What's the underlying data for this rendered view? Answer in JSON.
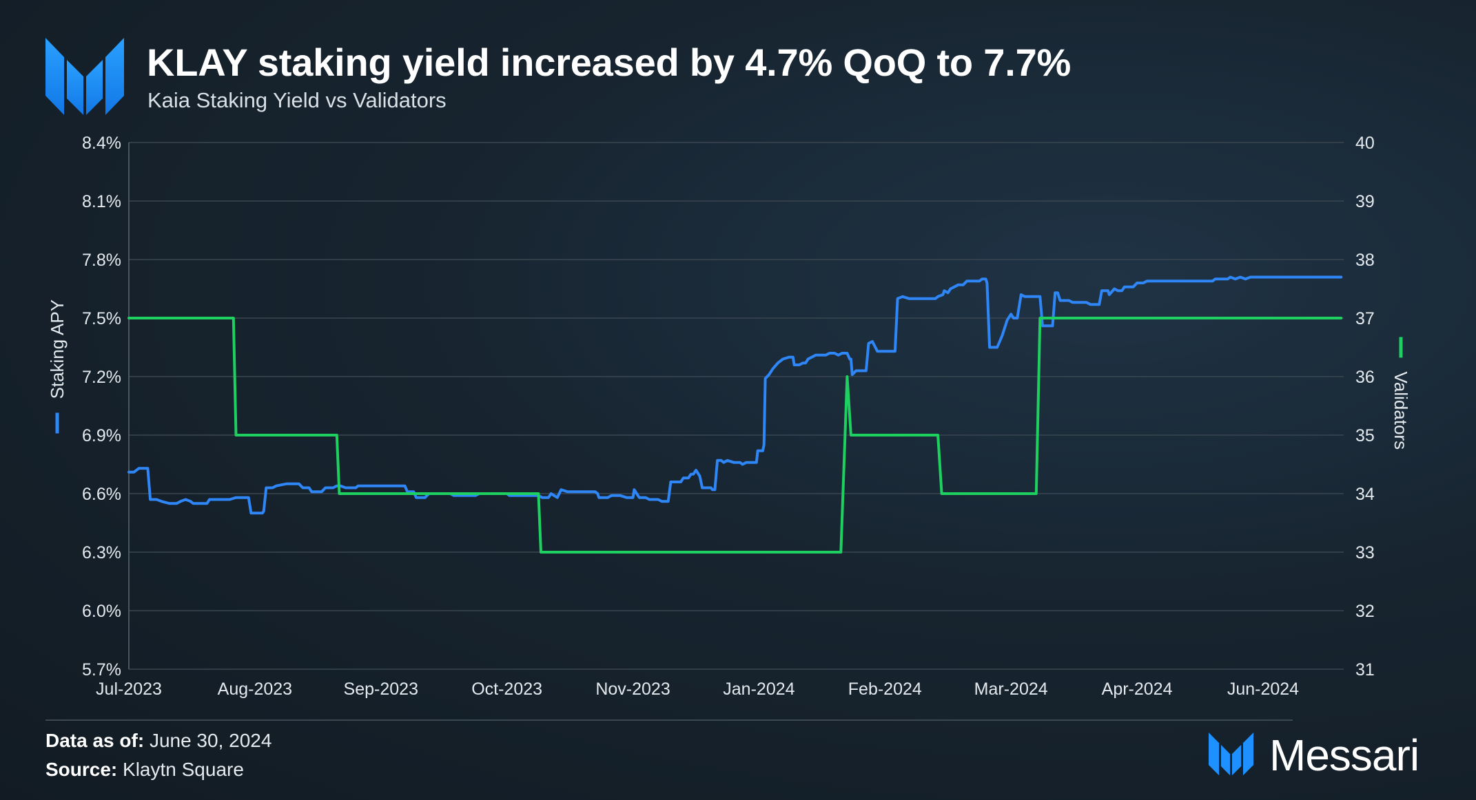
{
  "header": {
    "title": "KLAY staking yield increased by 4.7% QoQ to 7.7%",
    "subtitle": "Kaia Staking Yield vs Validators"
  },
  "footer": {
    "data_as_of_label": "Data as of:",
    "data_as_of_value": "June 30, 2024",
    "source_label": "Source:",
    "source_value": "Klaytn Square",
    "brand": "Messari"
  },
  "colors": {
    "staking_apy": "#2f86f6",
    "validators": "#1ed060",
    "grid": "#3a4650",
    "brand_blue": "#1e90ff"
  },
  "chart_data": {
    "type": "line",
    "x_labels": [
      "Jul-2023",
      "Aug-2023",
      "Sep-2023",
      "Oct-2023",
      "Nov-2023",
      "Jan-2024",
      "Feb-2024",
      "Mar-2024",
      "Apr-2024",
      "Jun-2024"
    ],
    "x_range": [
      0,
      9.64
    ],
    "y_left": {
      "label": "Staking APY",
      "ticks": [
        "5.7%",
        "6.0%",
        "6.3%",
        "6.6%",
        "6.9%",
        "7.2%",
        "7.5%",
        "7.8%",
        "8.1%",
        "8.4%"
      ],
      "range": [
        5.7,
        8.4
      ]
    },
    "y_right": {
      "label": "Validators",
      "ticks": [
        "31",
        "32",
        "33",
        "34",
        "35",
        "36",
        "37",
        "38",
        "39",
        "40"
      ],
      "range": [
        31,
        40
      ]
    },
    "grid": true,
    "series": [
      {
        "name": "Staking APY",
        "axis": "left",
        "points": [
          [
            0.0,
            6.71
          ],
          [
            0.04,
            6.71
          ],
          [
            0.08,
            6.73
          ],
          [
            0.15,
            6.73
          ],
          [
            0.17,
            6.57
          ],
          [
            0.22,
            6.57
          ],
          [
            0.26,
            6.56
          ],
          [
            0.32,
            6.55
          ],
          [
            0.38,
            6.55
          ],
          [
            0.41,
            6.56
          ],
          [
            0.45,
            6.57
          ],
          [
            0.49,
            6.56
          ],
          [
            0.51,
            6.55
          ],
          [
            0.62,
            6.55
          ],
          [
            0.64,
            6.57
          ],
          [
            0.8,
            6.57
          ],
          [
            0.85,
            6.58
          ],
          [
            0.95,
            6.58
          ],
          [
            0.97,
            6.5
          ],
          [
            1.06,
            6.5
          ],
          [
            1.07,
            6.51
          ],
          [
            1.09,
            6.63
          ],
          [
            1.14,
            6.63
          ],
          [
            1.17,
            6.64
          ],
          [
            1.25,
            6.65
          ],
          [
            1.35,
            6.65
          ],
          [
            1.38,
            6.63
          ],
          [
            1.43,
            6.63
          ],
          [
            1.45,
            6.61
          ],
          [
            1.53,
            6.61
          ],
          [
            1.56,
            6.63
          ],
          [
            1.62,
            6.63
          ],
          [
            1.65,
            6.64
          ],
          [
            1.68,
            6.64
          ],
          [
            1.72,
            6.63
          ],
          [
            1.8,
            6.63
          ],
          [
            1.82,
            6.64
          ],
          [
            2.05,
            6.64
          ],
          [
            2.14,
            6.64
          ],
          [
            2.19,
            6.64
          ],
          [
            2.21,
            6.61
          ],
          [
            2.26,
            6.61
          ],
          [
            2.28,
            6.58
          ],
          [
            2.35,
            6.58
          ],
          [
            2.38,
            6.6
          ],
          [
            2.45,
            6.6
          ],
          [
            2.5,
            6.6
          ],
          [
            2.55,
            6.6
          ],
          [
            2.58,
            6.59
          ],
          [
            2.75,
            6.59
          ],
          [
            2.78,
            6.6
          ],
          [
            3.0,
            6.6
          ],
          [
            3.02,
            6.59
          ],
          [
            3.25,
            6.59
          ],
          [
            3.28,
            6.58
          ],
          [
            3.33,
            6.58
          ],
          [
            3.35,
            6.6
          ],
          [
            3.4,
            6.58
          ],
          [
            3.43,
            6.62
          ],
          [
            3.48,
            6.61
          ],
          [
            3.7,
            6.61
          ],
          [
            3.72,
            6.6
          ],
          [
            3.73,
            6.58
          ],
          [
            3.8,
            6.58
          ],
          [
            3.83,
            6.59
          ],
          [
            3.9,
            6.59
          ],
          [
            3.95,
            6.58
          ],
          [
            4.0,
            6.58
          ],
          [
            4.01,
            6.62
          ],
          [
            4.05,
            6.58
          ],
          [
            4.1,
            6.58
          ],
          [
            4.13,
            6.57
          ],
          [
            4.2,
            6.57
          ],
          [
            4.23,
            6.56
          ],
          [
            4.28,
            6.56
          ],
          [
            4.3,
            6.66
          ],
          [
            4.38,
            6.66
          ],
          [
            4.4,
            6.68
          ],
          [
            4.44,
            6.68
          ],
          [
            4.46,
            6.7
          ],
          [
            4.48,
            6.7
          ],
          [
            4.5,
            6.72
          ],
          [
            4.53,
            6.69
          ],
          [
            4.55,
            6.63
          ],
          [
            4.62,
            6.63
          ],
          [
            4.63,
            6.62
          ],
          [
            4.65,
            6.62
          ],
          [
            4.67,
            6.77
          ],
          [
            4.7,
            6.77
          ],
          [
            4.72,
            6.76
          ],
          [
            4.75,
            6.77
          ],
          [
            4.8,
            6.76
          ],
          [
            4.85,
            6.76
          ],
          [
            4.87,
            6.75
          ],
          [
            4.9,
            6.76
          ],
          [
            4.98,
            6.76
          ],
          [
            4.99,
            6.82
          ],
          [
            5.03,
            6.82
          ],
          [
            5.04,
            6.85
          ],
          [
            5.05,
            7.19
          ],
          [
            5.08,
            7.21
          ],
          [
            5.11,
            7.24
          ],
          [
            5.15,
            7.27
          ],
          [
            5.19,
            7.29
          ],
          [
            5.24,
            7.3
          ],
          [
            5.27,
            7.3
          ],
          [
            5.28,
            7.26
          ],
          [
            5.32,
            7.26
          ],
          [
            5.35,
            7.27
          ],
          [
            5.37,
            7.27
          ],
          [
            5.39,
            7.29
          ],
          [
            5.42,
            7.3
          ],
          [
            5.45,
            7.31
          ],
          [
            5.48,
            7.31
          ],
          [
            5.53,
            7.31
          ],
          [
            5.56,
            7.32
          ],
          [
            5.6,
            7.32
          ],
          [
            5.63,
            7.31
          ],
          [
            5.66,
            7.32
          ],
          [
            5.7,
            7.32
          ],
          [
            5.72,
            7.29
          ],
          [
            5.73,
            7.29
          ],
          [
            5.74,
            7.21
          ],
          [
            5.77,
            7.23
          ],
          [
            5.85,
            7.23
          ],
          [
            5.87,
            7.37
          ],
          [
            5.9,
            7.38
          ],
          [
            5.94,
            7.33
          ],
          [
            6.08,
            7.33
          ],
          [
            6.1,
            7.6
          ],
          [
            6.14,
            7.61
          ],
          [
            6.19,
            7.6
          ],
          [
            6.32,
            7.6
          ],
          [
            6.4,
            7.6
          ],
          [
            6.42,
            7.61
          ],
          [
            6.46,
            7.62
          ],
          [
            6.47,
            7.64
          ],
          [
            6.5,
            7.63
          ],
          [
            6.52,
            7.65
          ],
          [
            6.55,
            7.66
          ],
          [
            6.58,
            7.67
          ],
          [
            6.62,
            7.67
          ],
          [
            6.65,
            7.69
          ],
          [
            6.75,
            7.69
          ],
          [
            6.77,
            7.7
          ],
          [
            6.8,
            7.7
          ],
          [
            6.81,
            7.68
          ],
          [
            6.83,
            7.35
          ],
          [
            6.89,
            7.35
          ],
          [
            6.93,
            7.41
          ],
          [
            6.97,
            7.49
          ],
          [
            7.0,
            7.52
          ],
          [
            7.02,
            7.5
          ],
          [
            7.05,
            7.5
          ],
          [
            7.08,
            7.62
          ],
          [
            7.11,
            7.61
          ],
          [
            7.23,
            7.61
          ],
          [
            7.25,
            7.46
          ],
          [
            7.33,
            7.46
          ],
          [
            7.35,
            7.63
          ],
          [
            7.37,
            7.63
          ],
          [
            7.39,
            7.59
          ],
          [
            7.46,
            7.59
          ],
          [
            7.49,
            7.58
          ],
          [
            7.6,
            7.58
          ],
          [
            7.63,
            7.57
          ],
          [
            7.7,
            7.57
          ],
          [
            7.72,
            7.64
          ],
          [
            7.77,
            7.64
          ],
          [
            7.78,
            7.62
          ],
          [
            7.82,
            7.65
          ],
          [
            7.85,
            7.64
          ],
          [
            7.88,
            7.64
          ],
          [
            7.9,
            7.66
          ],
          [
            7.97,
            7.66
          ],
          [
            8.0,
            7.68
          ],
          [
            8.05,
            7.68
          ],
          [
            8.08,
            7.69
          ],
          [
            8.6,
            7.69
          ],
          [
            8.62,
            7.7
          ],
          [
            8.72,
            7.7
          ],
          [
            8.74,
            7.71
          ],
          [
            8.78,
            7.7
          ],
          [
            8.82,
            7.71
          ],
          [
            8.86,
            7.7
          ],
          [
            8.9,
            7.71
          ],
          [
            9.0,
            7.71
          ],
          [
            9.62,
            7.71
          ]
        ]
      },
      {
        "name": "Validators",
        "axis": "right",
        "points": [
          [
            0.0,
            37
          ],
          [
            0.83,
            37
          ],
          [
            0.85,
            35
          ],
          [
            1.65,
            35
          ],
          [
            1.67,
            34
          ],
          [
            3.25,
            34
          ],
          [
            3.27,
            33
          ],
          [
            5.65,
            33
          ],
          [
            5.7,
            36
          ],
          [
            5.73,
            35
          ],
          [
            6.42,
            35
          ],
          [
            6.45,
            34
          ],
          [
            7.2,
            34
          ],
          [
            7.23,
            37
          ],
          [
            9.62,
            37
          ]
        ]
      }
    ]
  }
}
